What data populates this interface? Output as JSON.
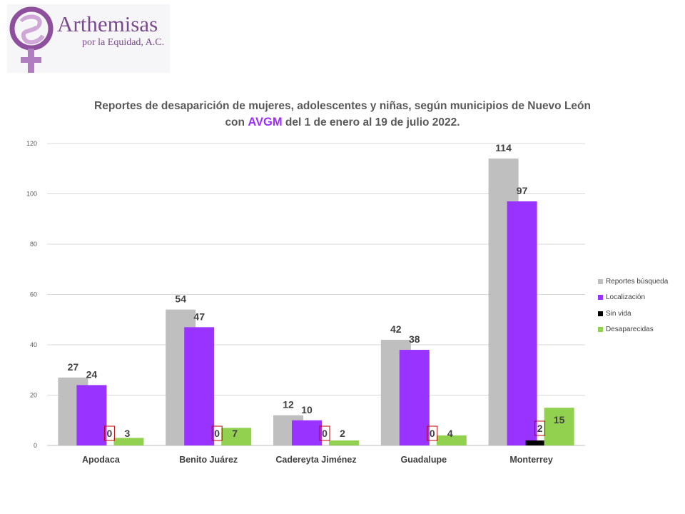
{
  "logo": {
    "name": "Arthemisas",
    "subtitle": "por la Equidad, A.C.",
    "color": "#7a4b8c"
  },
  "title": {
    "line1": "Reportes de desaparición de mujeres, adolescentes y niñas, según municipios de Nuevo León",
    "line2_prefix": "con ",
    "line2_accent": "AVGM",
    "line2_suffix": " del 1 de enero al 19 de julio 2022."
  },
  "chart_data": {
    "type": "bar",
    "title": "Reportes de desaparición de mujeres, adolescentes y niñas, según municipios de Nuevo León con AVGM del 1 de enero al 19 de julio 2022.",
    "categories": [
      "Apodaca",
      "Benito Juárez",
      "Cadereyta Jiménez",
      "Guadalupe",
      "Monterrey"
    ],
    "series": [
      {
        "name": "Reportes búsqueda",
        "color": "#bfbfbf",
        "values": [
          27,
          54,
          12,
          42,
          114
        ]
      },
      {
        "name": "Localización",
        "color": "#9933ff",
        "values": [
          24,
          47,
          10,
          38,
          97
        ]
      },
      {
        "name": "Sin vida",
        "color": "#000000",
        "values": [
          0,
          0,
          0,
          0,
          2
        ]
      },
      {
        "name": "Desaparecidas",
        "color": "#92d050",
        "values": [
          3,
          7,
          2,
          4,
          15
        ]
      }
    ],
    "ylim": [
      0,
      120
    ],
    "yticks": [
      0,
      20,
      40,
      60,
      80,
      100,
      120
    ],
    "grid": true,
    "legend_position": "right",
    "xlabel": "",
    "ylabel": ""
  }
}
